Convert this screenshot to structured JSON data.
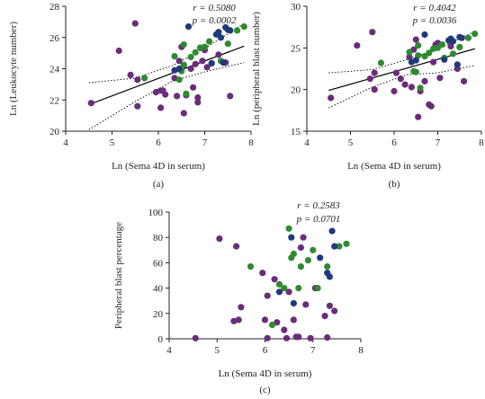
{
  "colors": {
    "purple": "#6b2c7a",
    "green": "#2e8b2e",
    "navy": "#1f3a7a",
    "axis": "#231f20",
    "fit": "#000000"
  },
  "chart_data": [
    {
      "type": "scatter",
      "panel_label": "(a)",
      "xlabel": "Ln (Sema 4D in serum)",
      "ylabel": "Ln (Leukocyte number)",
      "xlim": [
        4,
        8
      ],
      "ylim": [
        20,
        28
      ],
      "xticks": [
        4,
        5,
        6,
        7,
        8
      ],
      "yticks": [
        20,
        22,
        24,
        26,
        28
      ],
      "stats": [
        "r = 0.5080",
        "p = 0.0002"
      ],
      "fit": {
        "x": [
          4.5,
          7.85
        ],
        "y": [
          21.7,
          25.45
        ]
      },
      "ci_upper": [
        [
          4.5,
          23.1
        ],
        [
          5.5,
          23.4
        ],
        [
          6.3,
          24.2
        ],
        [
          7.0,
          25.3
        ],
        [
          7.85,
          26.9
        ]
      ],
      "ci_lower": [
        [
          4.5,
          20.1
        ],
        [
          5.5,
          21.9
        ],
        [
          6.3,
          23.2
        ],
        [
          7.0,
          23.8
        ],
        [
          7.85,
          24.4
        ]
      ],
      "points": {
        "purple": [
          [
            4.55,
            21.8
          ],
          [
            5.15,
            25.15
          ],
          [
            5.4,
            23.6
          ],
          [
            5.5,
            26.9
          ],
          [
            5.55,
            23.3
          ],
          [
            5.55,
            21.6
          ],
          [
            5.95,
            22.5
          ],
          [
            6.05,
            22.6
          ],
          [
            6.05,
            21.5
          ],
          [
            6.1,
            22.6
          ],
          [
            6.15,
            22.35
          ],
          [
            6.35,
            23.4
          ],
          [
            6.4,
            22.25
          ],
          [
            6.45,
            24.5
          ],
          [
            6.5,
            25.4
          ],
          [
            6.55,
            21.15
          ],
          [
            6.6,
            22.3
          ],
          [
            6.7,
            24.0
          ],
          [
            6.75,
            22.8
          ],
          [
            6.8,
            24.3
          ],
          [
            6.85,
            21.85
          ],
          [
            6.85,
            22.15
          ],
          [
            6.95,
            24.5
          ],
          [
            7.0,
            25.2
          ],
          [
            7.05,
            24.1
          ],
          [
            7.3,
            24.9
          ],
          [
            7.45,
            24.4
          ],
          [
            7.55,
            22.25
          ]
        ],
        "green": [
          [
            5.7,
            23.4
          ],
          [
            6.35,
            24.8
          ],
          [
            6.45,
            23.3
          ],
          [
            6.5,
            23.85
          ],
          [
            6.55,
            25.55
          ],
          [
            6.55,
            24.25
          ],
          [
            6.6,
            22.4
          ],
          [
            6.7,
            24.75
          ],
          [
            6.8,
            25.05
          ],
          [
            6.9,
            25.35
          ],
          [
            7.0,
            25.4
          ],
          [
            7.1,
            25.75
          ],
          [
            7.15,
            24.35
          ],
          [
            7.35,
            24.5
          ],
          [
            7.5,
            25.6
          ],
          [
            7.7,
            26.45
          ],
          [
            7.85,
            26.7
          ]
        ],
        "navy": [
          [
            6.35,
            23.9
          ],
          [
            6.45,
            24.0
          ],
          [
            6.65,
            26.7
          ],
          [
            7.15,
            24.35
          ],
          [
            7.25,
            26.2
          ],
          [
            7.3,
            26.35
          ],
          [
            7.35,
            26.0
          ],
          [
            7.4,
            24.4
          ],
          [
            7.45,
            26.65
          ],
          [
            7.5,
            26.5
          ],
          [
            7.55,
            26.45
          ]
        ]
      }
    },
    {
      "type": "scatter",
      "panel_label": "(b)",
      "xlabel": "Ln (Sema 4D in serum)",
      "ylabel": "Ln (peripheral blast number)",
      "xlim": [
        4,
        8
      ],
      "ylim": [
        15,
        30
      ],
      "xticks": [
        4,
        5,
        6,
        7,
        8
      ],
      "yticks": [
        15,
        20,
        25,
        30
      ],
      "stats": [
        "r = 0.4042",
        "p = 0.0036"
      ],
      "fit": {
        "x": [
          4.5,
          7.85
        ],
        "y": [
          19.9,
          24.9
        ]
      },
      "ci_upper": [
        [
          4.5,
          22.0
        ],
        [
          5.5,
          22.4
        ],
        [
          6.3,
          23.6
        ],
        [
          7.0,
          24.9
        ],
        [
          7.85,
          27.0
        ]
      ],
      "ci_lower": [
        [
          4.5,
          17.8
        ],
        [
          5.5,
          20.3
        ],
        [
          6.3,
          21.8
        ],
        [
          7.0,
          22.0
        ],
        [
          7.85,
          22.9
        ]
      ],
      "points": {
        "purple": [
          [
            4.55,
            19.0
          ],
          [
            5.15,
            25.3
          ],
          [
            5.45,
            21.3
          ],
          [
            5.5,
            26.9
          ],
          [
            5.55,
            22.0
          ],
          [
            5.55,
            20.0
          ],
          [
            6.0,
            19.8
          ],
          [
            6.05,
            22.0
          ],
          [
            6.15,
            21.3
          ],
          [
            6.25,
            20.6
          ],
          [
            6.35,
            23.9
          ],
          [
            6.4,
            20.3
          ],
          [
            6.45,
            24.8
          ],
          [
            6.5,
            26.0
          ],
          [
            6.55,
            16.7
          ],
          [
            6.6,
            19.8
          ],
          [
            6.7,
            21.0
          ],
          [
            6.8,
            18.2
          ],
          [
            6.85,
            18.0
          ],
          [
            6.9,
            23.3
          ],
          [
            6.95,
            25.4
          ],
          [
            7.0,
            25.6
          ],
          [
            7.05,
            21.4
          ],
          [
            7.3,
            25.2
          ],
          [
            7.45,
            22.5
          ],
          [
            7.6,
            21.0
          ]
        ],
        "green": [
          [
            5.7,
            23.2
          ],
          [
            6.35,
            24.5
          ],
          [
            6.45,
            22.2
          ],
          [
            6.5,
            22.1
          ],
          [
            6.55,
            25.3
          ],
          [
            6.55,
            24.1
          ],
          [
            6.6,
            20.2
          ],
          [
            6.7,
            24.0
          ],
          [
            6.8,
            24.4
          ],
          [
            6.9,
            24.9
          ],
          [
            7.0,
            25.0
          ],
          [
            7.1,
            25.4
          ],
          [
            7.15,
            23.8
          ],
          [
            7.35,
            24.3
          ],
          [
            7.5,
            25.1
          ],
          [
            7.7,
            26.2
          ],
          [
            7.85,
            26.7
          ]
        ],
        "navy": [
          [
            6.4,
            23.3
          ],
          [
            6.5,
            23.5
          ],
          [
            6.7,
            26.6
          ],
          [
            7.15,
            23.6
          ],
          [
            7.25,
            25.9
          ],
          [
            7.3,
            26.1
          ],
          [
            7.35,
            25.8
          ],
          [
            7.45,
            23.0
          ],
          [
            7.5,
            26.3
          ],
          [
            7.55,
            26.2
          ]
        ]
      }
    },
    {
      "type": "scatter",
      "panel_label": "(c)",
      "xlabel": "Ln (Sema 4D in serum)",
      "ylabel": "Peripheral blast percentage",
      "xlim": [
        4,
        8
      ],
      "ylim": [
        0,
        100
      ],
      "xticks": [
        4,
        5,
        6,
        7,
        8
      ],
      "yticks": [
        0,
        20,
        40,
        60,
        80,
        100
      ],
      "stats": [
        "r = 0.2583",
        "p = 0.0701"
      ],
      "points": {
        "purple": [
          [
            4.55,
            0.5
          ],
          [
            5.05,
            79
          ],
          [
            5.35,
            14
          ],
          [
            5.4,
            73
          ],
          [
            5.45,
            15
          ],
          [
            5.5,
            25
          ],
          [
            5.95,
            52
          ],
          [
            6.0,
            15
          ],
          [
            6.05,
            0.5
          ],
          [
            6.05,
            34
          ],
          [
            6.2,
            47
          ],
          [
            6.25,
            13
          ],
          [
            6.4,
            7
          ],
          [
            6.45,
            0.5
          ],
          [
            6.5,
            37
          ],
          [
            6.6,
            15
          ],
          [
            6.65,
            1.5
          ],
          [
            6.7,
            1.5
          ],
          [
            6.75,
            72
          ],
          [
            6.8,
            80
          ],
          [
            6.85,
            27
          ],
          [
            6.95,
            0.5
          ],
          [
            7.05,
            40
          ],
          [
            7.25,
            18
          ],
          [
            7.3,
            1.0
          ],
          [
            7.35,
            26
          ],
          [
            7.45,
            22
          ]
        ],
        "green": [
          [
            5.7,
            57
          ],
          [
            6.15,
            11
          ],
          [
            6.3,
            43
          ],
          [
            6.4,
            40
          ],
          [
            6.5,
            87
          ],
          [
            6.55,
            64
          ],
          [
            6.6,
            67
          ],
          [
            6.7,
            40
          ],
          [
            6.75,
            57
          ],
          [
            6.9,
            62
          ],
          [
            7.0,
            70
          ],
          [
            7.1,
            40
          ],
          [
            7.3,
            57
          ],
          [
            7.55,
            73
          ],
          [
            7.7,
            75
          ]
        ],
        "navy": [
          [
            6.3,
            37
          ],
          [
            6.55,
            80
          ],
          [
            6.6,
            28
          ],
          [
            7.15,
            64
          ],
          [
            7.3,
            52
          ],
          [
            7.35,
            49
          ],
          [
            7.4,
            85
          ],
          [
            7.45,
            73
          ]
        ]
      }
    }
  ]
}
